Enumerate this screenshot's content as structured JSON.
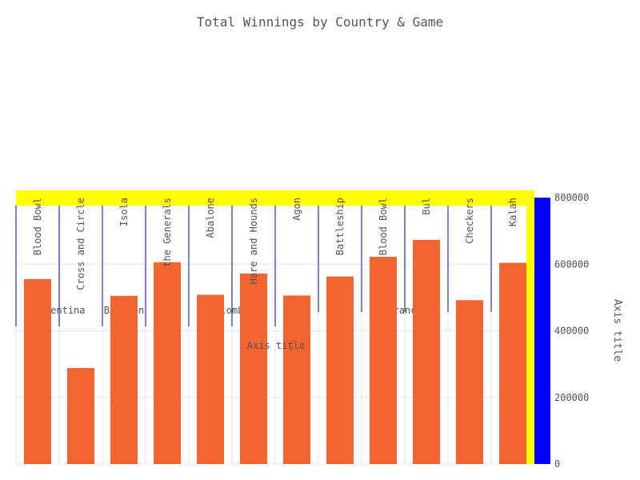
{
  "chart_data": {
    "type": "bar",
    "title": "Total Winnings by Country & Game",
    "categories": [
      "Blood Bowl",
      "Cross and Circle",
      "Isola",
      "the Generals",
      "Abalone",
      "Hare and Hounds",
      "Agon",
      "Battleship",
      "Blood Bowl",
      "Bul",
      "Checkers",
      "Kalah"
    ],
    "group_labels": [
      "Argentina",
      "Bahrain",
      "Colombia",
      "France"
    ],
    "values": [
      555000,
      288000,
      505000,
      606000,
      508000,
      572000,
      506000,
      563000,
      622000,
      673000,
      492000,
      604000
    ],
    "xlabel": "Axis title",
    "ylabel": "Axis title",
    "ylim": [
      0,
      800000
    ],
    "yticks": [
      "0",
      "200000",
      "400000",
      "600000",
      "800000"
    ],
    "y_axis_side": "right",
    "grid": true,
    "colors": {
      "bar": "#f26430",
      "category_band": "#ffff00",
      "axis_bar": "#0000ff",
      "group_divider": "#0000cc",
      "grid": "#e6e6e6",
      "text": "#555555"
    }
  }
}
